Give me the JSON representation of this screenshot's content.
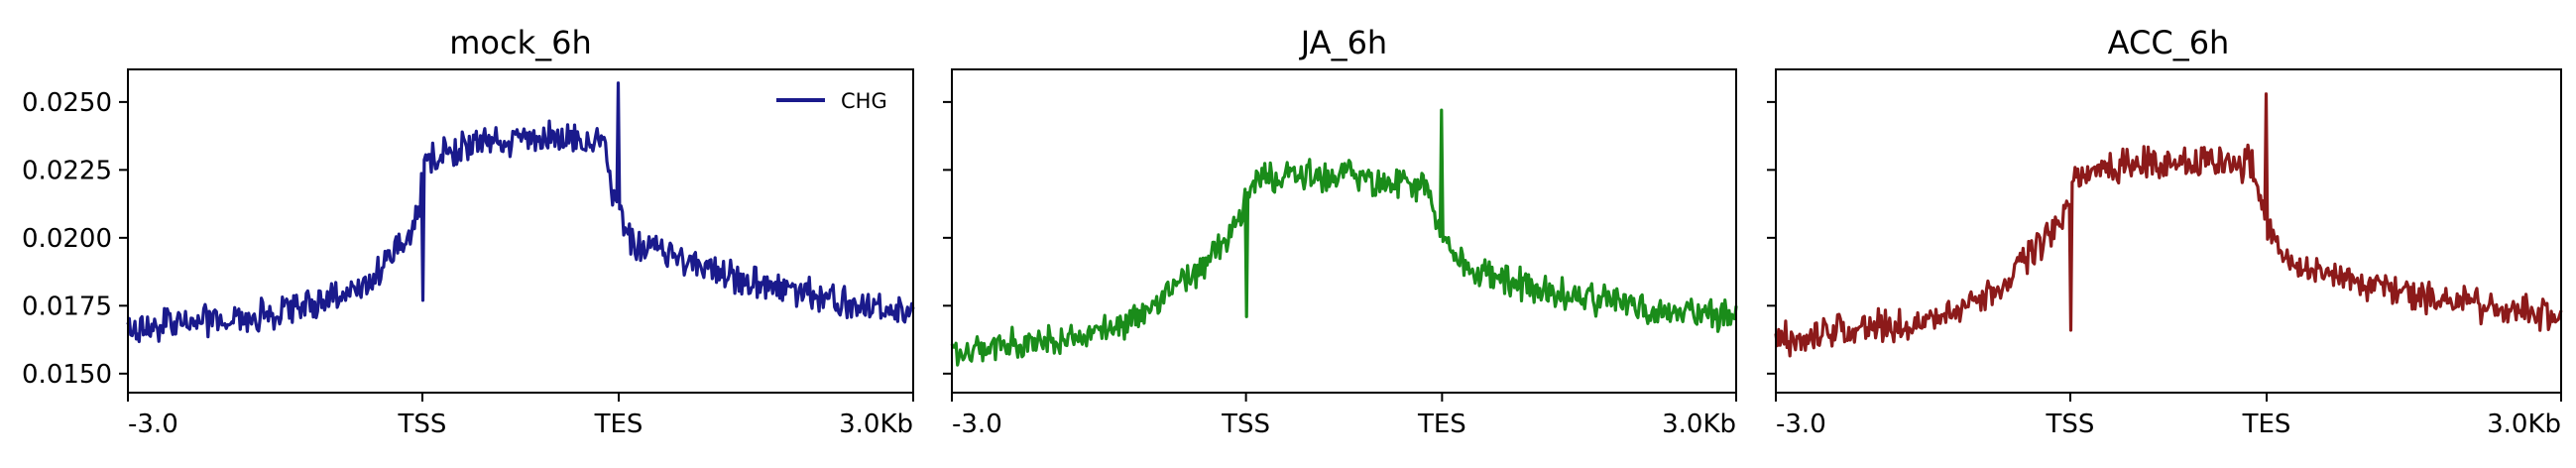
{
  "chart_data": [
    {
      "type": "line",
      "title": "mock_6h",
      "xlabel": "",
      "ylabel": "",
      "x_ticks": [
        "-3.0",
        "TSS",
        "TES",
        "3.0Kb"
      ],
      "y_ticks": [
        "0.0150",
        "0.0175",
        "0.0200",
        "0.0225",
        "0.0250"
      ],
      "ylim": [
        0.0143,
        0.0262
      ],
      "legend": "top-right",
      "series": [
        {
          "name": "CHG",
          "color": "#1a1a8c",
          "x": [
            -3000,
            -2500,
            -2000,
            -1500,
            -1000,
            -500,
            -100,
            -20,
            0,
            30,
            100,
            300,
            500,
            800,
            1000,
            1200,
            1300,
            1360,
            1400,
            1450,
            1500,
            1560,
            1700,
            2000,
            2300,
            2600,
            3000
          ],
          "y": [
            0.0165,
            0.0169,
            0.017,
            0.0172,
            0.0176,
            0.0184,
            0.0203,
            0.0212,
            0.0224,
            0.0228,
            0.0231,
            0.0233,
            0.0236,
            0.0237,
            0.0237,
            0.0236,
            0.0233,
            0.0237,
            0.0231,
            0.0218,
            0.021,
            0.0199,
            0.0195,
            0.0187,
            0.0182,
            0.0177,
            0.0173
          ],
          "spikes": [
            {
              "x": 0,
              "y": 0.0177
            },
            {
              "x": 1500,
              "y": 0.0257
            }
          ]
        }
      ]
    },
    {
      "type": "line",
      "title": "JA_6h",
      "xlabel": "",
      "ylabel": "",
      "x_ticks": [
        "-3.0",
        "TSS",
        "TES",
        "3.0Kb"
      ],
      "y_ticks": [],
      "ylim": [
        0.0143,
        0.0262
      ],
      "legend": "none",
      "series": [
        {
          "name": "",
          "color": "#1a8c1a",
          "x": [
            -3000,
            -2500,
            -2000,
            -1500,
            -1000,
            -500,
            -100,
            -20,
            0,
            30,
            100,
            300,
            500,
            800,
            1000,
            1200,
            1300,
            1360,
            1400,
            1450,
            1500,
            1560,
            1700,
            2000,
            2300,
            2600,
            3000
          ],
          "y": [
            0.0158,
            0.0161,
            0.0162,
            0.0164,
            0.0174,
            0.0188,
            0.0203,
            0.0211,
            0.0219,
            0.0221,
            0.0222,
            0.0224,
            0.0223,
            0.0222,
            0.0221,
            0.0221,
            0.0219,
            0.0222,
            0.0217,
            0.0207,
            0.0201,
            0.0192,
            0.0187,
            0.0181,
            0.0177,
            0.0174,
            0.0171
          ],
          "spikes": [
            {
              "x": 0,
              "y": 0.0171
            },
            {
              "x": 1500,
              "y": 0.0247
            }
          ]
        }
      ]
    },
    {
      "type": "line",
      "title": "ACC_6h",
      "xlabel": "",
      "ylabel": "",
      "x_ticks": [
        "-3.0",
        "TSS",
        "TES",
        "3.0Kb"
      ],
      "y_ticks": [],
      "ylim": [
        0.0143,
        0.0262
      ],
      "legend": "none",
      "series": [
        {
          "name": "",
          "color": "#8c1a1a",
          "x": [
            -3000,
            -2500,
            -2000,
            -1500,
            -1000,
            -500,
            -100,
            -20,
            0,
            30,
            100,
            300,
            500,
            800,
            1000,
            1200,
            1300,
            1360,
            1400,
            1450,
            1500,
            1560,
            1700,
            2000,
            2300,
            2600,
            3000
          ],
          "y": [
            0.0162,
            0.0165,
            0.0167,
            0.0169,
            0.0175,
            0.019,
            0.0206,
            0.0214,
            0.022,
            0.0222,
            0.0224,
            0.0226,
            0.0227,
            0.0228,
            0.0228,
            0.0228,
            0.0226,
            0.0229,
            0.0224,
            0.0213,
            0.0205,
            0.0195,
            0.0189,
            0.0183,
            0.0179,
            0.0175,
            0.0171
          ],
          "spikes": [
            {
              "x": 0,
              "y": 0.0166
            },
            {
              "x": 1500,
              "y": 0.0253
            }
          ]
        }
      ]
    }
  ]
}
